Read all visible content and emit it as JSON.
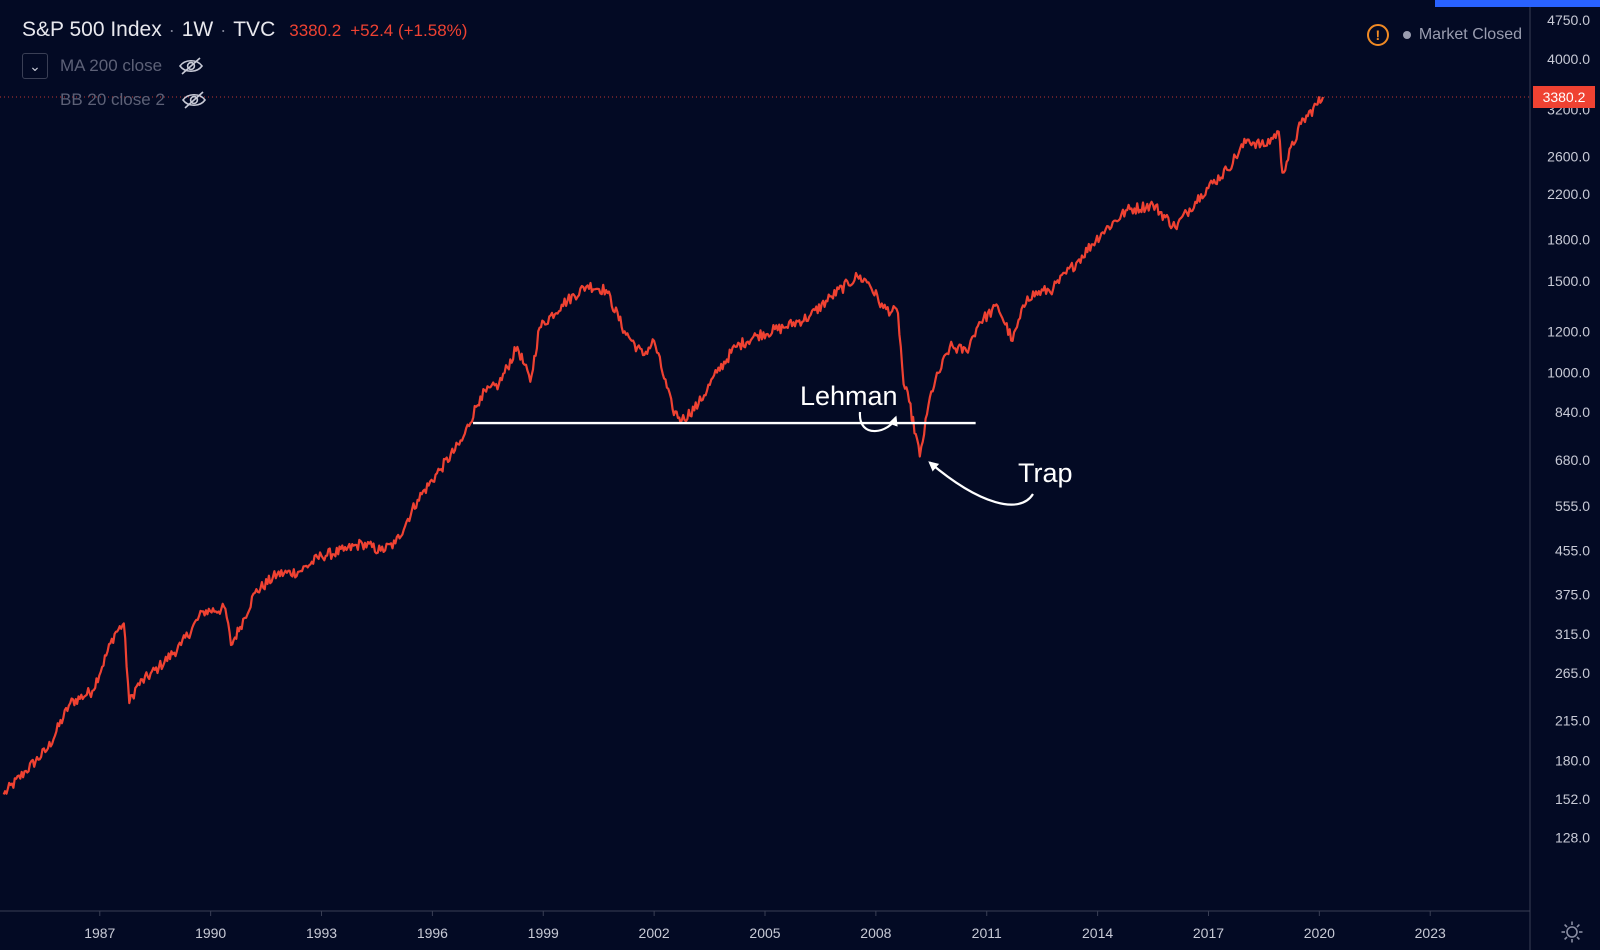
{
  "header": {
    "symbol": "S&P 500 Index",
    "separator": "·",
    "timeframe": "1W",
    "source": "TVC",
    "last_price": "3380.2",
    "change": "+52.4 (+1.58%)"
  },
  "indicators": [
    {
      "label": "MA 200 close"
    },
    {
      "label": "BB 20 close 2"
    }
  ],
  "market_status": {
    "text": "Market Closed",
    "warning_symbol": "!"
  },
  "price_tag": {
    "label": "3380.2",
    "color": "#ef4232"
  },
  "colors": {
    "background": "#030a24",
    "series": "#ef4232",
    "support_line": "#ffffff",
    "axis_text": "#c8cad6",
    "accent": "#2962ff"
  },
  "chart_data": {
    "type": "line",
    "title": "S&P 500 Index · 1W · TVC",
    "scale": "log",
    "xlabel": "",
    "ylabel": "",
    "x_range": [
      1984.3,
      2025.7
    ],
    "ylim": [
      110,
      4750
    ],
    "x_ticks": [
      "1987",
      "1990",
      "1993",
      "1996",
      "1999",
      "2002",
      "2005",
      "2008",
      "2011",
      "2014",
      "2017",
      "2020",
      "2023"
    ],
    "y_ticks": [
      "4750.0",
      "4000.0",
      "3200.0",
      "2600.0",
      "2200.0",
      "1800.0",
      "1500.0",
      "1200.0",
      "1000.0",
      "840.0",
      "680.0",
      "555.0",
      "455.0",
      "375.0",
      "315.0",
      "265.0",
      "215.0",
      "180.0",
      "152.0",
      "128.0"
    ],
    "series": [
      {
        "name": "S&P 500 Index",
        "x": [
          1984.4,
          1985.0,
          1985.6,
          1986.2,
          1986.8,
          1987.4,
          1987.65,
          1987.8,
          1988.0,
          1988.6,
          1989.2,
          1989.8,
          1990.4,
          1990.55,
          1990.8,
          1991.2,
          1991.8,
          1992.4,
          1993.0,
          1993.6,
          1994.1,
          1994.6,
          1995.0,
          1995.6,
          1996.2,
          1996.8,
          1997.3,
          1997.8,
          1998.3,
          1998.65,
          1998.9,
          1999.5,
          2000.2,
          2000.7,
          2001.2,
          2001.7,
          2002.0,
          2002.5,
          2002.75,
          2003.2,
          2003.7,
          2004.2,
          2004.8,
          2005.5,
          2006.2,
          2006.8,
          2007.5,
          2007.8,
          2008.2,
          2008.6,
          2008.75,
          2008.9,
          2009.19,
          2009.5,
          2010.0,
          2010.45,
          2010.8,
          2011.3,
          2011.7,
          2012.1,
          2012.8,
          2013.5,
          2014.1,
          2014.8,
          2015.5,
          2016.1,
          2016.8,
          2017.5,
          2018.05,
          2018.5,
          2018.9,
          2019.0,
          2019.5,
          2020.1
        ],
        "values": [
          155,
          172,
          190,
          232,
          245,
          315,
          330,
          232,
          250,
          272,
          300,
          348,
          352,
          300,
          325,
          378,
          410,
          415,
          445,
          455,
          470,
          455,
          470,
          570,
          650,
          740,
          900,
          950,
          1120,
          960,
          1220,
          1350,
          1470,
          1440,
          1200,
          1080,
          1150,
          850,
          810,
          870,
          1000,
          1120,
          1180,
          1220,
          1280,
          1400,
          1530,
          1490,
          1330,
          1300,
          950,
          880,
          690,
          920,
          1120,
          1100,
          1250,
          1340,
          1150,
          1400,
          1450,
          1650,
          1850,
          2050,
          2100,
          1900,
          2200,
          2450,
          2800,
          2720,
          2900,
          2420,
          3000,
          3380
        ]
      }
    ],
    "support_line": {
      "y": 800,
      "x_start": 1997.1,
      "x_end": 2010.7
    },
    "annotations": [
      {
        "text": "Lehman",
        "x": 2008.7,
        "y": 820
      },
      {
        "text": "Trap",
        "x": 2009.35,
        "y": 690
      }
    ],
    "grid": false,
    "legend": "none"
  }
}
